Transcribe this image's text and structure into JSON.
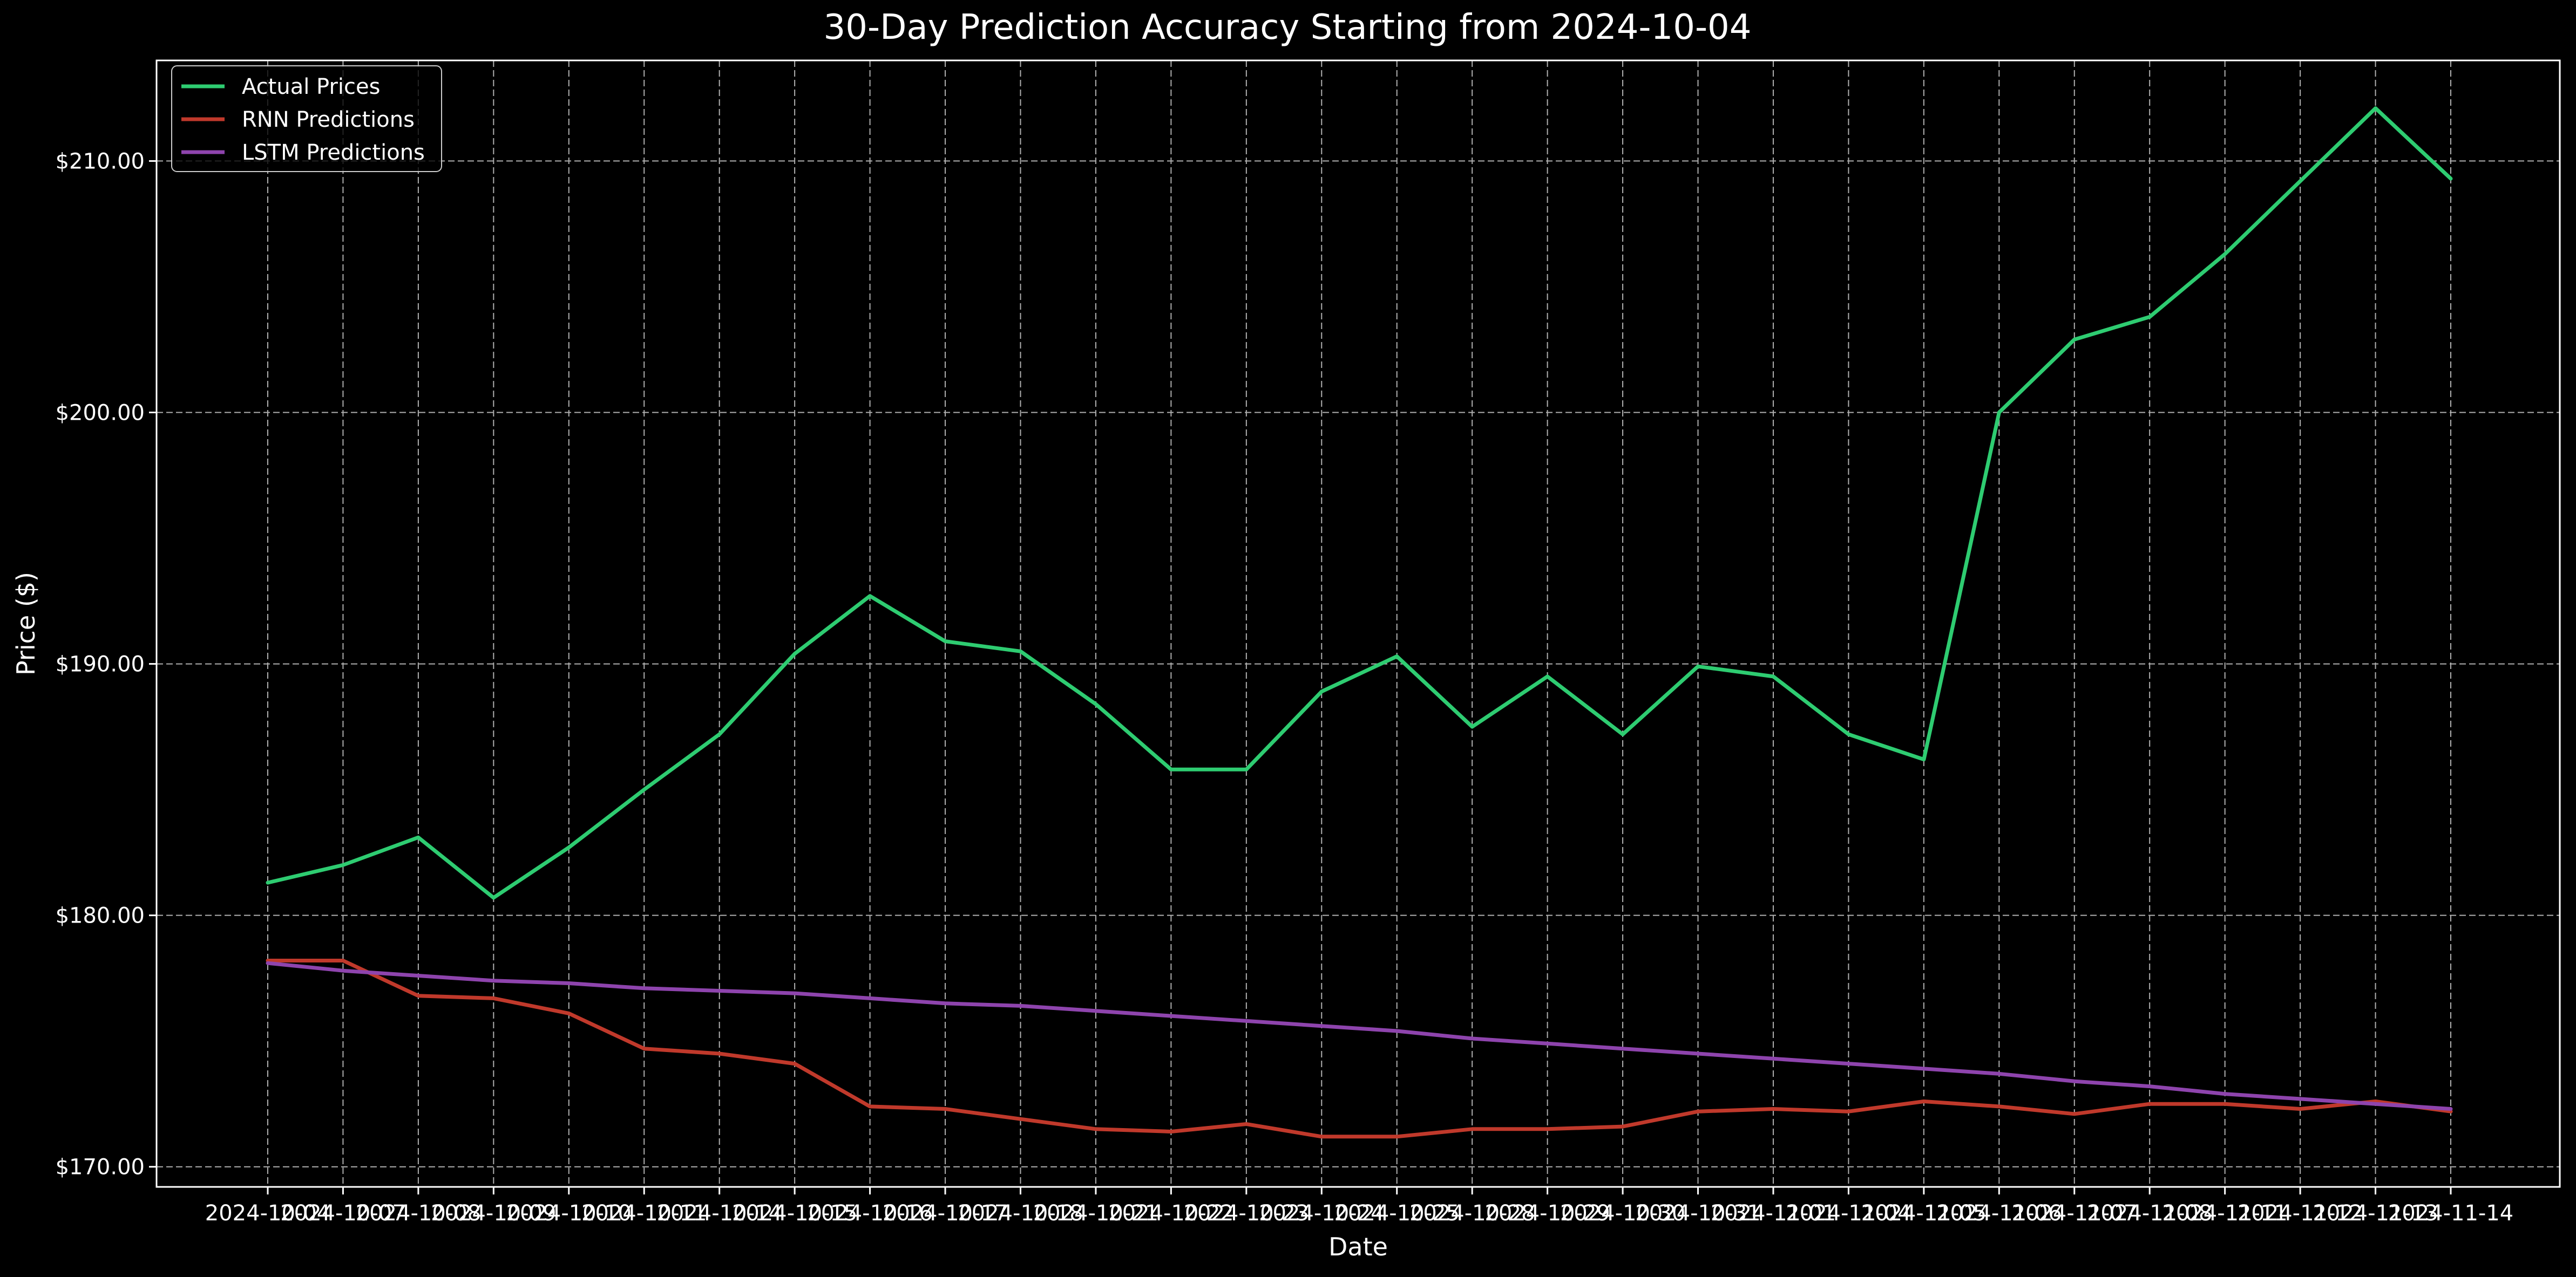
{
  "chart_data": {
    "type": "line",
    "title": "30-Day Prediction Accuracy Starting from 2024-10-04",
    "xlabel": "Date",
    "ylabel": "Price ($)",
    "ylim": [
      169.2,
      214.0
    ],
    "yticks": [
      170,
      180,
      190,
      200,
      210
    ],
    "ytick_labels": [
      "$170.00",
      "$180.00",
      "$190.00",
      "$200.00",
      "$210.00"
    ],
    "grid": true,
    "legend_position": "top-left",
    "x": [
      "2024-10-04",
      "2024-10-07",
      "2024-10-08",
      "2024-10-09",
      "2024-10-10",
      "2024-10-11",
      "2024-10-14",
      "2024-10-15",
      "2024-10-16",
      "2024-10-17",
      "2024-10-18",
      "2024-10-21",
      "2024-10-22",
      "2024-10-23",
      "2024-10-24",
      "2024-10-25",
      "2024-10-28",
      "2024-10-29",
      "2024-10-30",
      "2024-10-31",
      "2024-11-01",
      "2024-11-04",
      "2024-11-05",
      "2024-11-06",
      "2024-11-07",
      "2024-11-08",
      "2024-11-11",
      "2024-11-12",
      "2024-11-13",
      "2024-11-14"
    ],
    "series": [
      {
        "name": "Actual Prices",
        "color": "#2ecc71",
        "values": [
          181.3,
          182.0,
          183.1,
          180.7,
          182.7,
          185.0,
          187.2,
          190.4,
          192.7,
          190.9,
          190.5,
          188.4,
          185.8,
          185.8,
          188.9,
          190.3,
          187.5,
          189.5,
          187.2,
          189.9,
          189.5,
          187.2,
          186.2,
          200.0,
          202.9,
          203.8,
          206.3,
          209.2,
          212.1,
          209.3
        ]
      },
      {
        "name": "RNN Predictions",
        "color": "#c0392b",
        "values": [
          178.2,
          178.2,
          176.8,
          176.7,
          176.1,
          174.7,
          174.5,
          174.1,
          172.4,
          172.3,
          171.9,
          171.5,
          171.4,
          171.7,
          171.2,
          171.2,
          171.5,
          171.5,
          171.6,
          172.2,
          172.3,
          172.2,
          172.6,
          172.4,
          172.1,
          172.5,
          172.5,
          172.3,
          172.6,
          172.2
        ]
      },
      {
        "name": "LSTM Predictions",
        "color": "#8e44ad",
        "values": [
          178.1,
          177.8,
          177.6,
          177.4,
          177.3,
          177.1,
          177.0,
          176.9,
          176.7,
          176.5,
          176.4,
          176.2,
          176.0,
          175.8,
          175.6,
          175.4,
          175.1,
          174.9,
          174.7,
          174.5,
          174.3,
          174.1,
          173.9,
          173.7,
          173.4,
          173.2,
          172.9,
          172.7,
          172.5,
          172.3
        ]
      }
    ]
  }
}
